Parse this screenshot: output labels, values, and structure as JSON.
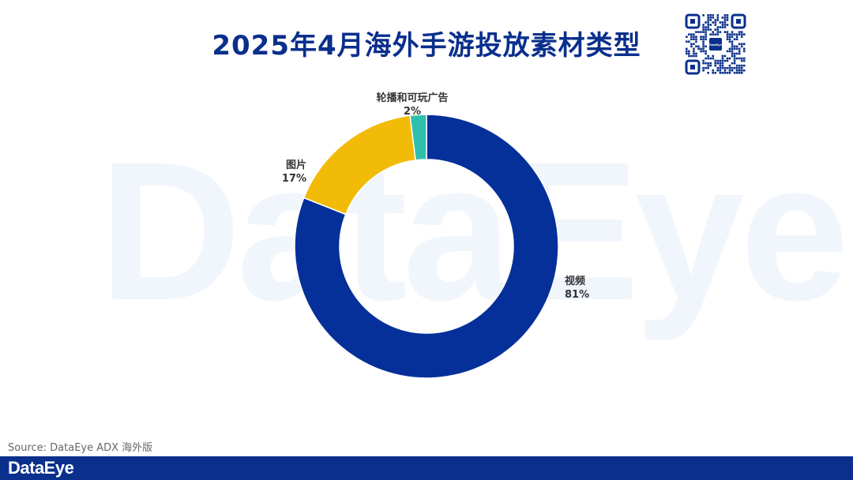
{
  "title": "2025年4月海外手游投放素材类型",
  "watermark": "DataEye",
  "qr_badge": "DataEye",
  "source": "Source: DataEye ADX 海外版",
  "footer_logo": "DataEye",
  "colors": {
    "title": "#0a2f8c",
    "footer": "#0a2f8c"
  },
  "chart_data": {
    "type": "pie",
    "donut": true,
    "title": "2025年4月海外手游投放素材类型",
    "slices": [
      {
        "name": "视频",
        "value": 81,
        "label": "81%",
        "color": "#05309a"
      },
      {
        "name": "图片",
        "value": 17,
        "label": "17%",
        "color": "#f2bb08"
      },
      {
        "name": "轮播和可玩广告",
        "value": 2,
        "label": "2%",
        "color": "#2ebfae"
      }
    ]
  }
}
